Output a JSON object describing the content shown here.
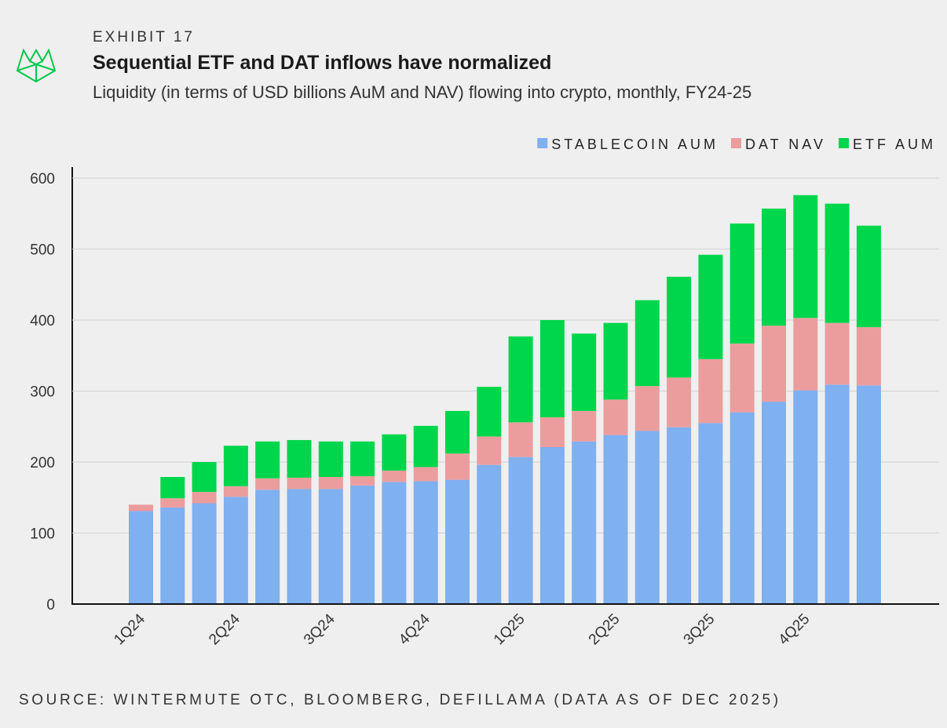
{
  "chart_data": {
    "type": "stacked_bar",
    "exhibit": "EXHIBIT 17",
    "title": "Sequential ETF and DAT inflows have normalized",
    "subtitle": "Liquidity (in terms of USD billions AuM and NAV) flowing into crypto, monthly, FY24-25",
    "source": "SOURCE: WINTERMUTE OTC, BLOOMBERG, DEFILLAMA (DATA AS OF DEC 2025)",
    "categories": [
      "1Q24",
      null,
      null,
      "2Q24",
      null,
      null,
      "3Q24",
      null,
      null,
      "4Q24",
      null,
      null,
      "1Q25",
      null,
      null,
      "2Q25",
      null,
      null,
      "3Q25",
      null,
      null,
      "4Q25",
      null,
      null
    ],
    "series": [
      {
        "name": "STABLECOIN AUM",
        "color": "#7fb0f0",
        "values": [
          131,
          136,
          142,
          151,
          161,
          162,
          162,
          167,
          172,
          173,
          175,
          196,
          207,
          221,
          229,
          238,
          244,
          249,
          255,
          270,
          285,
          301,
          309,
          308
        ]
      },
      {
        "name": "DAT NAV",
        "color": "#eb9d9d",
        "values": [
          9,
          13,
          16,
          15,
          16,
          16,
          17,
          13,
          16,
          20,
          37,
          40,
          49,
          42,
          43,
          50,
          63,
          70,
          90,
          97,
          107,
          102,
          87,
          82
        ]
      },
      {
        "name": "ETF AUM",
        "color": "#00d64b",
        "values": [
          0,
          30,
          42,
          57,
          52,
          53,
          50,
          49,
          51,
          58,
          60,
          70,
          121,
          137,
          109,
          108,
          121,
          142,
          147,
          169,
          165,
          173,
          168,
          143
        ]
      }
    ],
    "ylim": [
      0,
      600
    ],
    "yticks": [
      0,
      100,
      200,
      300,
      400,
      500,
      600
    ],
    "grid": true
  }
}
